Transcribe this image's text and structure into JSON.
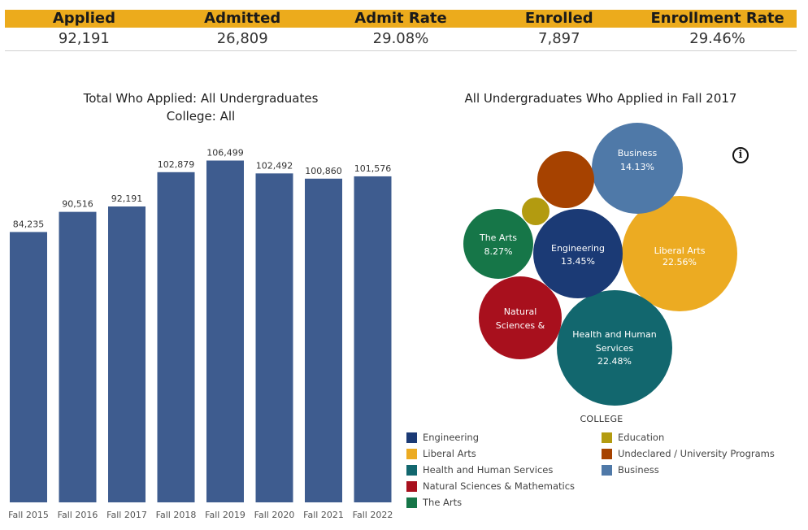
{
  "kpis": [
    {
      "label": "Applied",
      "value": "92,191"
    },
    {
      "label": "Admitted",
      "value": "26,809"
    },
    {
      "label": "Admit Rate",
      "value": "29.08%"
    },
    {
      "label": "Enrolled",
      "value": "7,897"
    },
    {
      "label": "Enrollment Rate",
      "value": "29.46%"
    }
  ],
  "colors": {
    "kpi_header_bg": "#ecab1c",
    "bar": "#3e5c8f",
    "engineering": "#1b3a75",
    "liberal_arts": "#ecab22",
    "health": "#12676e",
    "natural_sciences": "#a8101d",
    "the_arts": "#167648",
    "education": "#b39b10",
    "undeclared": "#a64200",
    "business": "#4f79a8"
  },
  "chart_data": [
    {
      "type": "bar",
      "title": "Total Who Applied: All Undergraduates",
      "subtitle": "College: All",
      "categories": [
        "Fall 2015",
        "Fall 2016",
        "Fall 2017",
        "Fall 2018",
        "Fall 2019",
        "Fall 2020",
        "Fall 2021",
        "Fall 2022"
      ],
      "values": [
        84235,
        90516,
        92191,
        102879,
        106499,
        102492,
        100860,
        101576
      ],
      "labels": [
        "84,235",
        "90,516",
        "92,191",
        "102,879",
        "106,499",
        "102,492",
        "100,860",
        "101,576"
      ],
      "ylim": [
        0,
        116000
      ],
      "grid": false
    },
    {
      "type": "bubble",
      "title": "All Undergraduates Who Applied  in Fall 2017",
      "legend_title": "COLLEGE",
      "bubbles": [
        {
          "name": "Liberal Arts",
          "display": [
            "Liberal Arts",
            "22.56%"
          ],
          "value": 22.56,
          "color_key": "liberal_arts"
        },
        {
          "name": "Health and Human Services",
          "display": [
            "Health and Human",
            "Services",
            "22.48%"
          ],
          "value": 22.48,
          "color_key": "health"
        },
        {
          "name": "Business",
          "display": [
            "Business",
            "14.13%"
          ],
          "value": 14.13,
          "color_key": "business"
        },
        {
          "name": "Engineering",
          "display": [
            "Engineering",
            "13.45%"
          ],
          "value": 13.45,
          "color_key": "engineering"
        },
        {
          "name": "Natural Sciences & Mathematics",
          "display": [
            "Natural",
            "Sciences &"
          ],
          "value": null,
          "color_key": "natural_sciences"
        },
        {
          "name": "The Arts",
          "display": [
            "The Arts",
            "8.27%"
          ],
          "value": 8.27,
          "color_key": "the_arts"
        },
        {
          "name": "Undeclared / University Programs",
          "display": [],
          "value": null,
          "color_key": "undeclared"
        },
        {
          "name": "Education",
          "display": [],
          "value": null,
          "color_key": "education"
        }
      ]
    }
  ],
  "legend": {
    "left": [
      {
        "label": "Engineering",
        "color_key": "engineering"
      },
      {
        "label": "Liberal Arts",
        "color_key": "liberal_arts"
      },
      {
        "label": "Health and Human Services",
        "color_key": "health"
      },
      {
        "label": "Natural Sciences & Mathematics",
        "color_key": "natural_sciences"
      },
      {
        "label": "The Arts",
        "color_key": "the_arts"
      }
    ],
    "right": [
      {
        "label": "Education",
        "color_key": "education"
      },
      {
        "label": "Undeclared / University Programs",
        "color_key": "undeclared"
      },
      {
        "label": "Business",
        "color_key": "business"
      }
    ]
  },
  "info_icon": {
    "glyph": "i",
    "icon": "info-icon"
  }
}
